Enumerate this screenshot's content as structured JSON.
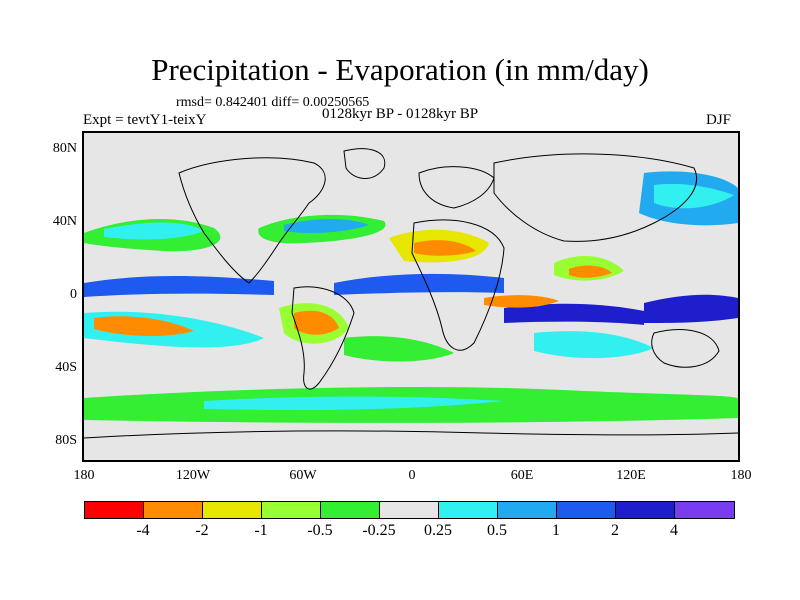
{
  "title": "Precipitation - Evaporation (in mm/day)",
  "stats": "rmsd= 0.842401 diff= 0.00250565",
  "left_label": "Expt = tevtY1-teixY",
  "center_label": "0128kyr BP - 0128kyr BP",
  "right_label": "DJF",
  "y_ticks": [
    "80N",
    "40N",
    "0",
    "40S",
    "80S"
  ],
  "x_ticks": [
    "180",
    "120W",
    "60W",
    "0",
    "60E",
    "120E",
    "180"
  ],
  "colorbar": {
    "colors": [
      "#ff0000",
      "#ff8c00",
      "#e6e600",
      "#99ff33",
      "#33ee33",
      "#e6e6e6",
      "#33f0f0",
      "#22aaf0",
      "#1e5af0",
      "#1e1ecc",
      "#7a3cf0"
    ],
    "labels": [
      "-4",
      "-2",
      "-1",
      "-0.5",
      "-0.25",
      "0.25",
      "0.5",
      "1",
      "2",
      "4"
    ]
  },
  "chart_data": {
    "type": "heatmap",
    "title": "Precipitation - Evaporation (in mm/day)",
    "variable": "P-E difference",
    "units": "mm/day",
    "season": "DJF",
    "x_range": [
      -180,
      180
    ],
    "y_range": [
      -90,
      90
    ],
    "levels": [
      -4,
      -2,
      -1,
      -0.5,
      -0.25,
      0.25,
      0.5,
      1,
      2,
      4
    ]
  }
}
